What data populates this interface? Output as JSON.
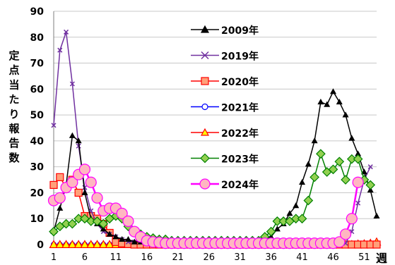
{
  "chart_data": {
    "type": "line",
    "ylabel": "定点当たり報告数",
    "xlabel": "週",
    "xlim": [
      1,
      53
    ],
    "ylim": [
      0,
      90
    ],
    "yticks": [
      0,
      10,
      20,
      30,
      40,
      50,
      60,
      70,
      80,
      90
    ],
    "xticks": [
      1,
      6,
      11,
      16,
      21,
      26,
      31,
      36,
      41,
      46,
      51
    ],
    "grid": true,
    "legend_position": "upper-center",
    "series": [
      {
        "name": "2009年",
        "color": "#000000",
        "marker": "triangle",
        "fill": "#000000",
        "line_width": 1.5,
        "x": [
          1,
          2,
          3,
          4,
          5,
          6,
          7,
          8,
          9,
          10,
          11,
          12,
          13,
          14,
          15,
          16,
          17,
          18,
          19,
          20,
          21,
          22,
          23,
          24,
          25,
          26,
          27,
          28,
          29,
          30,
          31,
          32,
          33,
          34,
          35,
          36,
          37,
          38,
          39,
          40,
          41,
          42,
          43,
          44,
          45,
          46,
          47,
          48,
          49,
          50,
          51,
          52,
          53
        ],
        "y": [
          5,
          14,
          23,
          42,
          40,
          20,
          10,
          8,
          6,
          4,
          3,
          2,
          2,
          1,
          1,
          1,
          1,
          1,
          1,
          1,
          1,
          1,
          1,
          1,
          1,
          1,
          1,
          1,
          1,
          1,
          1,
          1,
          1,
          1,
          2,
          3,
          6,
          8,
          12,
          15,
          24,
          31,
          40,
          55,
          54,
          59,
          55,
          50,
          41,
          35,
          28,
          21,
          11
        ]
      },
      {
        "name": "2019年",
        "color": "#7030a0",
        "marker": "x",
        "fill": "#7030a0",
        "line_width": 1.5,
        "x": [
          1,
          2,
          3,
          4,
          5,
          6,
          7,
          8,
          9,
          10,
          11,
          12,
          13,
          14,
          15,
          16,
          17,
          18,
          19,
          20,
          21,
          22,
          23,
          24,
          25,
          26,
          27,
          28,
          29,
          30,
          31,
          32,
          33,
          34,
          35,
          36,
          37,
          38,
          39,
          40,
          41,
          42,
          43,
          44,
          45,
          46,
          47,
          48,
          49,
          50,
          51,
          52,
          53
        ],
        "y": [
          46,
          75,
          82,
          62,
          38,
          22,
          13,
          8,
          5,
          4,
          3,
          2,
          1,
          1,
          1,
          0.5,
          0.5,
          0.5,
          0.5,
          0.5,
          0.5,
          0.5,
          0.5,
          0.5,
          0.5,
          0.5,
          0.5,
          0.5,
          0.5,
          0.5,
          0.5,
          0.5,
          0.5,
          0.5,
          0.5,
          0.5,
          0.5,
          0.5,
          0.5,
          0.5,
          0.5,
          0.5,
          0.5,
          0.5,
          0.5,
          0.5,
          0.5,
          0.5,
          5,
          16,
          25,
          30,
          null
        ]
      },
      {
        "name": "2020年",
        "color": "#ff0000",
        "marker": "square",
        "fill": "#ffa07a",
        "line_width": 1.5,
        "x": [
          1,
          2,
          3,
          4,
          5,
          6,
          7,
          8,
          9,
          10,
          11,
          12,
          13,
          14,
          15,
          16,
          17,
          18,
          19,
          20,
          21,
          22,
          23,
          24,
          25,
          26,
          27,
          28,
          29,
          30,
          31,
          32,
          33,
          34,
          35,
          36,
          37,
          38,
          39,
          40,
          41,
          42,
          43,
          44,
          45,
          46,
          47,
          48,
          49,
          50,
          51,
          52,
          53
        ],
        "y": [
          23,
          26,
          22,
          25,
          20,
          11,
          11,
          10,
          8,
          4.5,
          1,
          0.5,
          0.2,
          0,
          0,
          0,
          0,
          0,
          0,
          0,
          0,
          0,
          0,
          0,
          0,
          0,
          0,
          0,
          0,
          0,
          0,
          0,
          0,
          0,
          0,
          0,
          0,
          0,
          0,
          0,
          0,
          0,
          0,
          0,
          0,
          0,
          0,
          0,
          0,
          0,
          0,
          0,
          0
        ]
      },
      {
        "name": "2021年",
        "color": "#0000ff",
        "marker": "circle",
        "fill": "#ffffff",
        "line_width": 1.5,
        "x": [
          1,
          2,
          3,
          4,
          5,
          6,
          7,
          8,
          9,
          10,
          11,
          12,
          13,
          14,
          15,
          16,
          17,
          18,
          19,
          20,
          21,
          22,
          23,
          24,
          25,
          26,
          27,
          28,
          29,
          30,
          31,
          32,
          33,
          34,
          35,
          36,
          37,
          38,
          39,
          40,
          41,
          42,
          43,
          44,
          45,
          46,
          47,
          48,
          49,
          50,
          51,
          52,
          53
        ],
        "y": [
          0,
          0,
          0,
          0,
          0,
          0,
          0,
          0,
          0,
          0,
          0,
          0,
          0,
          0,
          0,
          0,
          0,
          0,
          0,
          0,
          0,
          0,
          0,
          0,
          0,
          0,
          0,
          0,
          0,
          0,
          0,
          0,
          0,
          0,
          0,
          0,
          0,
          0,
          0,
          0,
          0,
          0,
          0,
          0,
          0,
          0,
          0,
          0,
          0,
          0,
          0,
          0,
          0
        ]
      },
      {
        "name": "2022年",
        "color": "#ff0000",
        "marker": "triangle",
        "fill": "#ffff00",
        "line_width": 1.5,
        "x": [
          1,
          2,
          3,
          4,
          5,
          6,
          7,
          8,
          9,
          10,
          11,
          12,
          13,
          14,
          15,
          16,
          17,
          18,
          19,
          20,
          21,
          22,
          23,
          24,
          25,
          26,
          27,
          28,
          29,
          30,
          31,
          32,
          33,
          34,
          35,
          36,
          37,
          38,
          39,
          40,
          41,
          42,
          43,
          44,
          45,
          46,
          47,
          48,
          49,
          50,
          51,
          52,
          53
        ],
        "y": [
          0,
          0,
          0,
          0,
          0,
          0,
          0,
          0,
          0,
          0,
          0,
          0,
          0,
          0,
          0,
          0,
          0,
          0,
          0,
          0,
          0,
          0,
          0,
          0,
          0,
          0,
          0,
          0,
          0,
          0,
          0,
          0,
          0,
          0,
          0,
          0,
          0,
          0,
          0,
          0,
          0,
          0,
          0,
          0,
          0,
          0,
          0,
          0,
          0,
          0.2,
          0.3,
          0.5,
          1
        ]
      },
      {
        "name": "2023年",
        "color": "#008000",
        "marker": "diamond",
        "fill": "#92d050",
        "line_width": 1.5,
        "x": [
          1,
          2,
          3,
          4,
          5,
          6,
          7,
          8,
          9,
          10,
          11,
          12,
          13,
          14,
          15,
          16,
          17,
          18,
          19,
          20,
          21,
          22,
          23,
          24,
          25,
          26,
          27,
          28,
          29,
          30,
          31,
          32,
          33,
          34,
          35,
          36,
          37,
          38,
          39,
          40,
          41,
          42,
          43,
          44,
          45,
          46,
          47,
          48,
          49,
          50,
          51,
          52,
          53
        ],
        "y": [
          5,
          7,
          8,
          8,
          10,
          10,
          9,
          9,
          8,
          10,
          11,
          10,
          7,
          5,
          4,
          3,
          2.5,
          2,
          2,
          1.5,
          1.5,
          1.5,
          1.5,
          1.5,
          1.5,
          1.5,
          1.5,
          1.5,
          1.5,
          1.5,
          1.5,
          1.5,
          1.5,
          1.5,
          3,
          5,
          9,
          9,
          9,
          10,
          10,
          17,
          26,
          35,
          28,
          29,
          32,
          25,
          33,
          33,
          25,
          23,
          null
        ]
      },
      {
        "name": "2024年",
        "color": "#ff00ff",
        "marker": "circle",
        "fill": "#ffb6c1",
        "line_width": 2.5,
        "x": [
          1,
          2,
          3,
          4,
          5,
          6,
          7,
          8,
          9,
          10,
          11,
          12,
          13,
          14,
          15,
          16,
          17,
          18,
          19,
          20,
          21,
          22,
          23,
          24,
          25,
          26,
          27,
          28,
          29,
          30,
          31,
          32,
          33,
          34,
          35,
          36,
          37,
          38,
          39,
          40,
          41,
          42,
          43,
          44,
          45,
          46,
          47,
          48,
          49,
          50
        ],
        "y": [
          17,
          18,
          22,
          24,
          27,
          29,
          24,
          18,
          13,
          14,
          14,
          12,
          9,
          5,
          3,
          1.5,
          1,
          0.8,
          0.5,
          0.5,
          0.5,
          0.5,
          0.5,
          0.5,
          0.5,
          0.5,
          0.5,
          0.5,
          0.5,
          0.5,
          0.5,
          0.5,
          0.5,
          0.5,
          0.5,
          0.5,
          0.5,
          0.5,
          0.5,
          0.5,
          0.5,
          0.5,
          0.5,
          0.5,
          0.5,
          0.5,
          1,
          4,
          10,
          24
        ]
      }
    ]
  }
}
